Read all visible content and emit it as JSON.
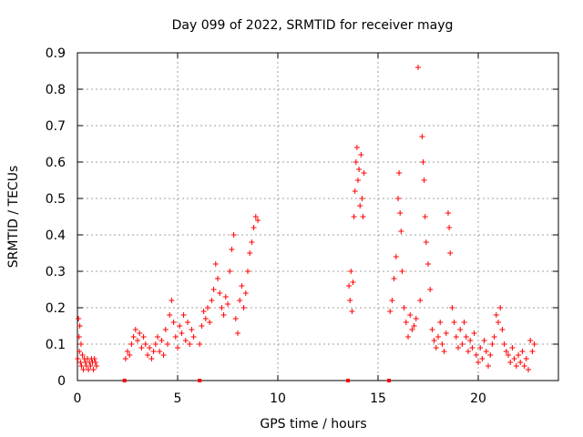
{
  "chart_data": {
    "type": "scatter",
    "title": "Day 099 of 2022, SRMTID for receiver mayg",
    "xlabel": "GPS time / hours",
    "ylabel": "SRMTID / TECUs",
    "xlim": [
      0,
      24
    ],
    "ylim": [
      0,
      0.9
    ],
    "xticks": [
      0,
      5,
      10,
      15,
      20
    ],
    "yticks": [
      0,
      0.1,
      0.2,
      0.3,
      0.4,
      0.5,
      0.6,
      0.7,
      0.8,
      0.9
    ],
    "xtick_labels": [
      "0",
      "5",
      "10",
      "15",
      "20"
    ],
    "ytick_labels": [
      "0",
      "0.1",
      "0.2",
      "0.3",
      "0.4",
      "0.5",
      "0.6",
      "0.7",
      "0.8",
      "0.9"
    ],
    "grid": true,
    "marker": "+",
    "color": "#ff0000",
    "series": [
      {
        "name": "SRMTID",
        "points": [
          [
            0.02,
            0.06
          ],
          [
            0.05,
            0.17
          ],
          [
            0.08,
            0.12
          ],
          [
            0.1,
            0.08
          ],
          [
            0.12,
            0.15
          ],
          [
            0.15,
            0.05
          ],
          [
            0.18,
            0.1
          ],
          [
            0.2,
            0.04
          ],
          [
            0.25,
            0.07
          ],
          [
            0.3,
            0.03
          ],
          [
            0.35,
            0.06
          ],
          [
            0.4,
            0.05
          ],
          [
            0.45,
            0.04
          ],
          [
            0.5,
            0.06
          ],
          [
            0.55,
            0.03
          ],
          [
            0.6,
            0.05
          ],
          [
            0.65,
            0.04
          ],
          [
            0.7,
            0.06
          ],
          [
            0.75,
            0.05
          ],
          [
            0.8,
            0.03
          ],
          [
            0.85,
            0.06
          ],
          [
            0.9,
            0.05
          ],
          [
            0.95,
            0.04
          ],
          [
            2.35,
            0.0
          ],
          [
            2.4,
            0.06
          ],
          [
            2.5,
            0.08
          ],
          [
            2.6,
            0.07
          ],
          [
            2.7,
            0.1
          ],
          [
            2.8,
            0.12
          ],
          [
            2.9,
            0.14
          ],
          [
            3.0,
            0.11
          ],
          [
            3.1,
            0.13
          ],
          [
            3.2,
            0.09
          ],
          [
            3.3,
            0.12
          ],
          [
            3.4,
            0.1
          ],
          [
            3.5,
            0.07
          ],
          [
            3.6,
            0.09
          ],
          [
            3.7,
            0.06
          ],
          [
            3.8,
            0.08
          ],
          [
            3.9,
            0.1
          ],
          [
            4.0,
            0.12
          ],
          [
            4.1,
            0.08
          ],
          [
            4.2,
            0.11
          ],
          [
            4.3,
            0.07
          ],
          [
            4.4,
            0.14
          ],
          [
            4.5,
            0.1
          ],
          [
            4.6,
            0.18
          ],
          [
            4.7,
            0.22
          ],
          [
            4.8,
            0.16
          ],
          [
            4.9,
            0.12
          ],
          [
            5.0,
            0.09
          ],
          [
            5.1,
            0.15
          ],
          [
            5.2,
            0.13
          ],
          [
            5.3,
            0.18
          ],
          [
            5.4,
            0.11
          ],
          [
            5.5,
            0.16
          ],
          [
            5.6,
            0.1
          ],
          [
            5.7,
            0.14
          ],
          [
            5.8,
            0.12
          ],
          [
            6.1,
            0.0
          ],
          [
            6.1,
            0.1
          ],
          [
            6.2,
            0.15
          ],
          [
            6.3,
            0.19
          ],
          [
            6.4,
            0.17
          ],
          [
            6.5,
            0.2
          ],
          [
            6.6,
            0.16
          ],
          [
            6.7,
            0.22
          ],
          [
            6.8,
            0.25
          ],
          [
            6.9,
            0.32
          ],
          [
            7.0,
            0.28
          ],
          [
            7.1,
            0.24
          ],
          [
            7.2,
            0.2
          ],
          [
            7.3,
            0.18
          ],
          [
            7.4,
            0.23
          ],
          [
            7.5,
            0.21
          ],
          [
            7.6,
            0.3
          ],
          [
            7.7,
            0.36
          ],
          [
            7.8,
            0.4
          ],
          [
            7.9,
            0.17
          ],
          [
            8.0,
            0.13
          ],
          [
            8.1,
            0.22
          ],
          [
            8.2,
            0.26
          ],
          [
            8.3,
            0.2
          ],
          [
            8.4,
            0.24
          ],
          [
            8.5,
            0.3
          ],
          [
            8.6,
            0.35
          ],
          [
            8.7,
            0.38
          ],
          [
            8.8,
            0.42
          ],
          [
            8.9,
            0.45
          ],
          [
            9.0,
            0.44
          ],
          [
            13.5,
            0.0
          ],
          [
            13.55,
            0.26
          ],
          [
            13.6,
            0.22
          ],
          [
            13.65,
            0.3
          ],
          [
            13.7,
            0.19
          ],
          [
            13.75,
            0.27
          ],
          [
            13.8,
            0.45
          ],
          [
            13.85,
            0.52
          ],
          [
            13.9,
            0.6
          ],
          [
            13.95,
            0.64
          ],
          [
            14.0,
            0.55
          ],
          [
            14.05,
            0.58
          ],
          [
            14.1,
            0.48
          ],
          [
            14.15,
            0.62
          ],
          [
            14.2,
            0.5
          ],
          [
            14.25,
            0.45
          ],
          [
            14.3,
            0.57
          ],
          [
            15.55,
            0.0
          ],
          [
            15.6,
            0.19
          ],
          [
            15.7,
            0.22
          ],
          [
            15.8,
            0.28
          ],
          [
            15.9,
            0.34
          ],
          [
            16.0,
            0.5
          ],
          [
            16.05,
            0.57
          ],
          [
            16.1,
            0.46
          ],
          [
            16.15,
            0.41
          ],
          [
            16.2,
            0.3
          ],
          [
            16.3,
            0.2
          ],
          [
            16.4,
            0.16
          ],
          [
            16.5,
            0.12
          ],
          [
            16.6,
            0.18
          ],
          [
            16.7,
            0.14
          ],
          [
            16.8,
            0.15
          ],
          [
            16.9,
            0.17
          ],
          [
            17.0,
            0.86
          ],
          [
            17.1,
            0.22
          ],
          [
            17.2,
            0.67
          ],
          [
            17.25,
            0.6
          ],
          [
            17.3,
            0.55
          ],
          [
            17.35,
            0.45
          ],
          [
            17.4,
            0.38
          ],
          [
            17.5,
            0.32
          ],
          [
            17.6,
            0.25
          ],
          [
            17.7,
            0.14
          ],
          [
            17.8,
            0.11
          ],
          [
            17.9,
            0.09
          ],
          [
            18.0,
            0.12
          ],
          [
            18.1,
            0.16
          ],
          [
            18.2,
            0.1
          ],
          [
            18.3,
            0.08
          ],
          [
            18.4,
            0.13
          ],
          [
            18.5,
            0.46
          ],
          [
            18.55,
            0.42
          ],
          [
            18.6,
            0.35
          ],
          [
            18.7,
            0.2
          ],
          [
            18.8,
            0.16
          ],
          [
            18.9,
            0.12
          ],
          [
            19.0,
            0.09
          ],
          [
            19.1,
            0.14
          ],
          [
            19.2,
            0.1
          ],
          [
            19.3,
            0.16
          ],
          [
            19.4,
            0.12
          ],
          [
            19.5,
            0.08
          ],
          [
            19.6,
            0.11
          ],
          [
            19.7,
            0.09
          ],
          [
            19.8,
            0.13
          ],
          [
            19.9,
            0.07
          ],
          [
            20.0,
            0.05
          ],
          [
            20.1,
            0.09
          ],
          [
            20.2,
            0.06
          ],
          [
            20.3,
            0.11
          ],
          [
            20.4,
            0.08
          ],
          [
            20.5,
            0.04
          ],
          [
            20.6,
            0.07
          ],
          [
            20.7,
            0.1
          ],
          [
            20.8,
            0.12
          ],
          [
            20.9,
            0.18
          ],
          [
            21.0,
            0.16
          ],
          [
            21.1,
            0.2
          ],
          [
            21.2,
            0.14
          ],
          [
            21.3,
            0.1
          ],
          [
            21.4,
            0.08
          ],
          [
            21.5,
            0.07
          ],
          [
            21.6,
            0.05
          ],
          [
            21.7,
            0.09
          ],
          [
            21.8,
            0.06
          ],
          [
            21.9,
            0.04
          ],
          [
            22.0,
            0.07
          ],
          [
            22.1,
            0.05
          ],
          [
            22.2,
            0.08
          ],
          [
            22.3,
            0.04
          ],
          [
            22.4,
            0.06
          ],
          [
            22.5,
            0.03
          ],
          [
            22.6,
            0.11
          ],
          [
            22.7,
            0.08
          ],
          [
            22.8,
            0.1
          ]
        ]
      }
    ]
  }
}
